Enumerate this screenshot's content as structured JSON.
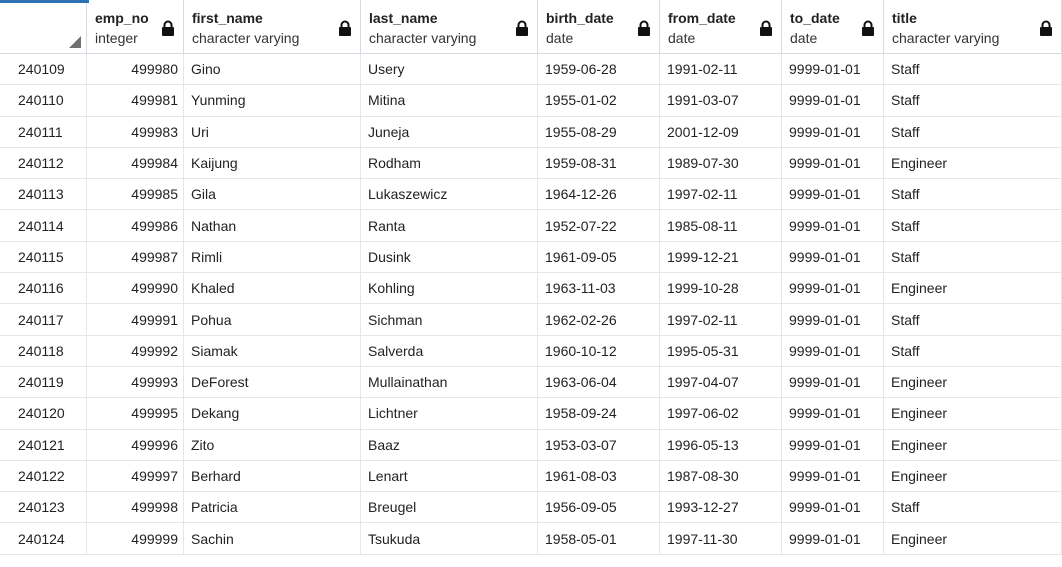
{
  "columns": [
    {
      "name": "emp_no",
      "type": "integer"
    },
    {
      "name": "first_name",
      "type": "character varying"
    },
    {
      "name": "last_name",
      "type": "character varying"
    },
    {
      "name": "birth_date",
      "type": "date"
    },
    {
      "name": "from_date",
      "type": "date"
    },
    {
      "name": "to_date",
      "type": "date"
    },
    {
      "name": "title",
      "type": "character varying"
    }
  ],
  "rows": [
    {
      "rownum": "240109",
      "emp_no": "499980",
      "first_name": "Gino",
      "last_name": "Usery",
      "birth_date": "1959-06-28",
      "from_date": "1991-02-11",
      "to_date": "9999-01-01",
      "title": "Staff"
    },
    {
      "rownum": "240110",
      "emp_no": "499981",
      "first_name": "Yunming",
      "last_name": "Mitina",
      "birth_date": "1955-01-02",
      "from_date": "1991-03-07",
      "to_date": "9999-01-01",
      "title": "Staff"
    },
    {
      "rownum": "240111",
      "emp_no": "499983",
      "first_name": "Uri",
      "last_name": "Juneja",
      "birth_date": "1955-08-29",
      "from_date": "2001-12-09",
      "to_date": "9999-01-01",
      "title": "Staff"
    },
    {
      "rownum": "240112",
      "emp_no": "499984",
      "first_name": "Kaijung",
      "last_name": "Rodham",
      "birth_date": "1959-08-31",
      "from_date": "1989-07-30",
      "to_date": "9999-01-01",
      "title": "Engineer"
    },
    {
      "rownum": "240113",
      "emp_no": "499985",
      "first_name": "Gila",
      "last_name": "Lukaszewicz",
      "birth_date": "1964-12-26",
      "from_date": "1997-02-11",
      "to_date": "9999-01-01",
      "title": "Staff"
    },
    {
      "rownum": "240114",
      "emp_no": "499986",
      "first_name": "Nathan",
      "last_name": "Ranta",
      "birth_date": "1952-07-22",
      "from_date": "1985-08-11",
      "to_date": "9999-01-01",
      "title": "Staff"
    },
    {
      "rownum": "240115",
      "emp_no": "499987",
      "first_name": "Rimli",
      "last_name": "Dusink",
      "birth_date": "1961-09-05",
      "from_date": "1999-12-21",
      "to_date": "9999-01-01",
      "title": "Staff"
    },
    {
      "rownum": "240116",
      "emp_no": "499990",
      "first_name": "Khaled",
      "last_name": "Kohling",
      "birth_date": "1963-11-03",
      "from_date": "1999-10-28",
      "to_date": "9999-01-01",
      "title": "Engineer"
    },
    {
      "rownum": "240117",
      "emp_no": "499991",
      "first_name": "Pohua",
      "last_name": "Sichman",
      "birth_date": "1962-02-26",
      "from_date": "1997-02-11",
      "to_date": "9999-01-01",
      "title": "Staff"
    },
    {
      "rownum": "240118",
      "emp_no": "499992",
      "first_name": "Siamak",
      "last_name": "Salverda",
      "birth_date": "1960-10-12",
      "from_date": "1995-05-31",
      "to_date": "9999-01-01",
      "title": "Staff"
    },
    {
      "rownum": "240119",
      "emp_no": "499993",
      "first_name": "DeForest",
      "last_name": "Mullainathan",
      "birth_date": "1963-06-04",
      "from_date": "1997-04-07",
      "to_date": "9999-01-01",
      "title": "Engineer"
    },
    {
      "rownum": "240120",
      "emp_no": "499995",
      "first_name": "Dekang",
      "last_name": "Lichtner",
      "birth_date": "1958-09-24",
      "from_date": "1997-06-02",
      "to_date": "9999-01-01",
      "title": "Engineer"
    },
    {
      "rownum": "240121",
      "emp_no": "499996",
      "first_name": "Zito",
      "last_name": "Baaz",
      "birth_date": "1953-03-07",
      "from_date": "1996-05-13",
      "to_date": "9999-01-01",
      "title": "Engineer"
    },
    {
      "rownum": "240122",
      "emp_no": "499997",
      "first_name": "Berhard",
      "last_name": "Lenart",
      "birth_date": "1961-08-03",
      "from_date": "1987-08-30",
      "to_date": "9999-01-01",
      "title": "Engineer"
    },
    {
      "rownum": "240123",
      "emp_no": "499998",
      "first_name": "Patricia",
      "last_name": "Breugel",
      "birth_date": "1956-09-05",
      "from_date": "1993-12-27",
      "to_date": "9999-01-01",
      "title": "Staff"
    },
    {
      "rownum": "240124",
      "emp_no": "499999",
      "first_name": "Sachin",
      "last_name": "Tsukuda",
      "birth_date": "1958-05-01",
      "from_date": "1997-11-30",
      "to_date": "9999-01-01",
      "title": "Engineer"
    }
  ]
}
